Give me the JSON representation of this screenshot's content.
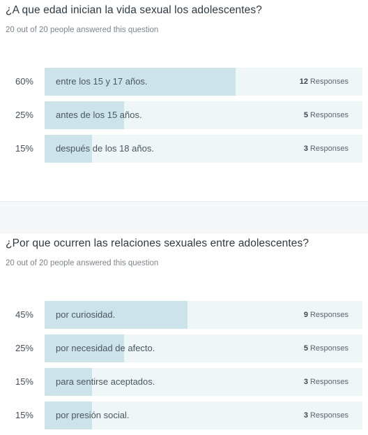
{
  "colors": {
    "bar_fill": "#cbe3e9",
    "bar_track": "#eef6f8",
    "separator": "#f6f7f8"
  },
  "questions": [
    {
      "title": "¿A que edad inician la vida sexual los adolescentes?",
      "meta": "20 out of 20 people answered this question",
      "answers": [
        {
          "percent": "60%",
          "share": 0.6,
          "label": "entre los 15 y 17 años.",
          "count": "12",
          "responses_label": "Responses"
        },
        {
          "percent": "25%",
          "share": 0.25,
          "label": "antes de los 15 años.",
          "count": "5",
          "responses_label": "Responses"
        },
        {
          "percent": "15%",
          "share": 0.15,
          "label": "después de los 18 años.",
          "count": "3",
          "responses_label": "Responses"
        }
      ]
    },
    {
      "title": "¿Por que ocurren las relaciones sexuales entre adolescentes?",
      "meta": "20 out of 20 people answered this question",
      "answers": [
        {
          "percent": "45%",
          "share": 0.45,
          "label": "por curiosidad.",
          "count": "9",
          "responses_label": "Responses"
        },
        {
          "percent": "25%",
          "share": 0.25,
          "label": "por necesidad de afecto.",
          "count": "5",
          "responses_label": "Responses"
        },
        {
          "percent": "15%",
          "share": 0.15,
          "label": "para sentirse aceptados.",
          "count": "3",
          "responses_label": "Responses"
        },
        {
          "percent": "15%",
          "share": 0.15,
          "label": "por presión social.",
          "count": "3",
          "responses_label": "Responses"
        }
      ]
    }
  ]
}
